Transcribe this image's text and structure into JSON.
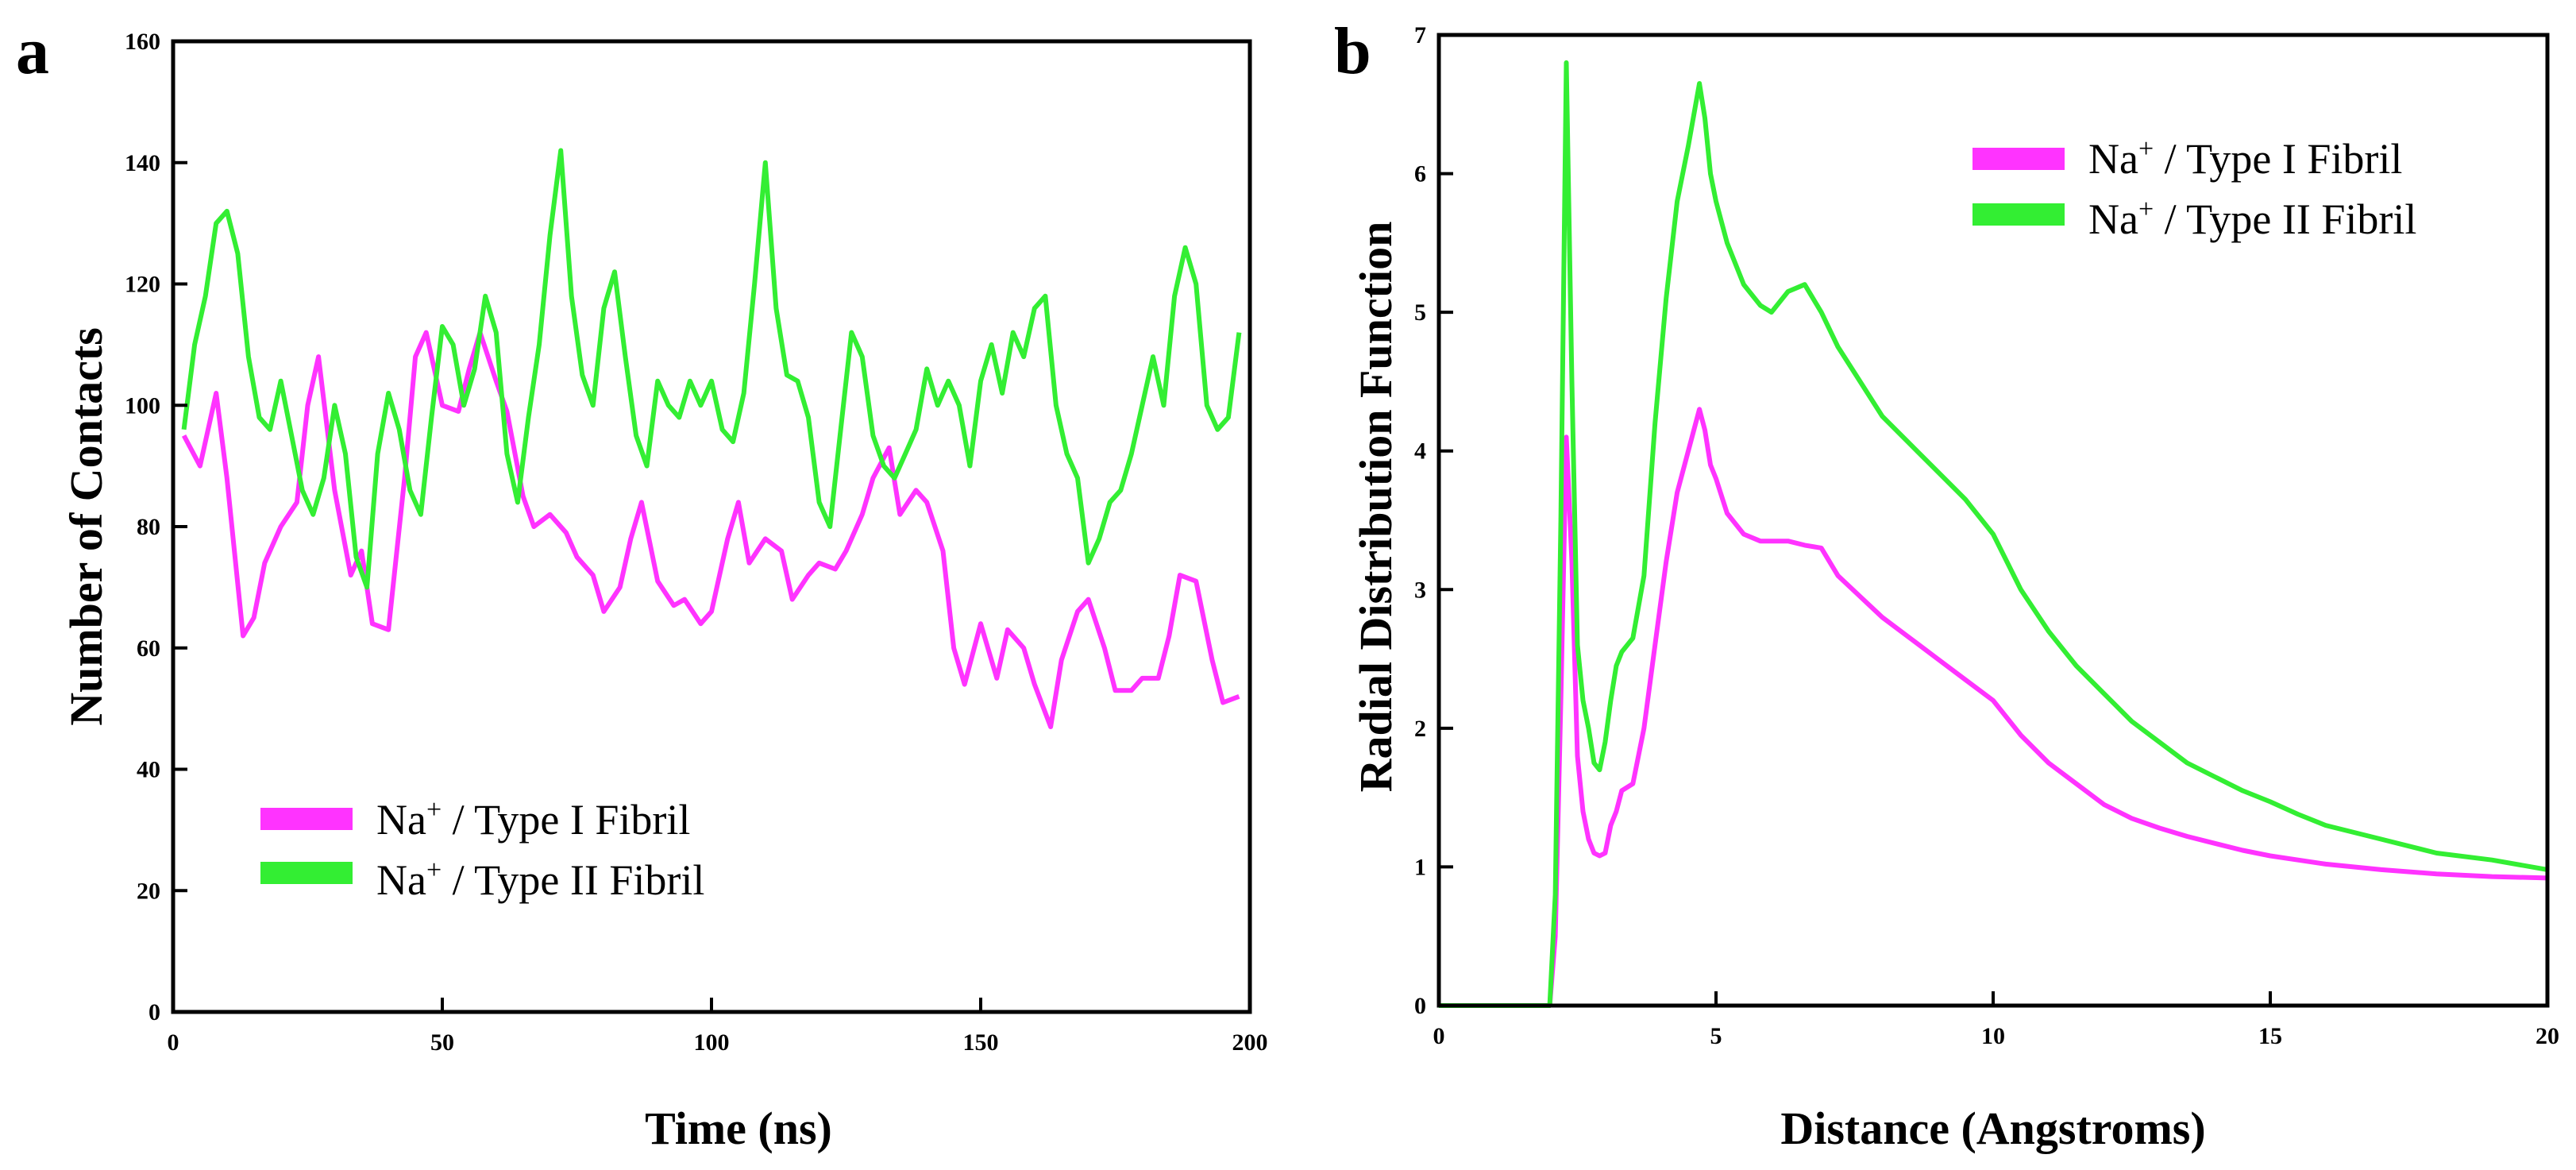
{
  "chart_data": [
    {
      "panel": "a",
      "type": "line",
      "title": "",
      "xlabel": "Time (ns)",
      "ylabel": "Number of Contacts",
      "xlim": [
        0,
        200
      ],
      "ylim": [
        0,
        160
      ],
      "xticks": [
        0,
        50,
        100,
        150,
        200
      ],
      "yticks": [
        0,
        20,
        40,
        60,
        80,
        100,
        120,
        140,
        160
      ],
      "grid": false,
      "legend_position": "bottom-left",
      "series": [
        {
          "name": "Na+ / Type I Fibril",
          "legend": {
            "base": "Na",
            "sup": "+",
            "rest": " / Type I Fibril"
          },
          "color": "#ff33ff",
          "x": [
            2,
            5,
            8,
            10,
            13,
            15,
            17,
            20,
            23,
            25,
            27,
            30,
            33,
            35,
            37,
            40,
            43,
            45,
            47,
            50,
            53,
            55,
            57,
            60,
            62,
            65,
            67,
            70,
            73,
            75,
            78,
            80,
            83,
            85,
            87,
            90,
            93,
            95,
            98,
            100,
            103,
            105,
            107,
            110,
            113,
            115,
            118,
            120,
            123,
            125,
            128,
            130,
            133,
            135,
            138,
            140,
            143,
            145,
            147,
            150,
            153,
            155,
            158,
            160,
            163,
            165,
            168,
            170,
            173,
            175,
            178,
            180,
            183,
            185,
            187,
            190,
            193,
            195,
            198
          ],
          "values": [
            95,
            90,
            102,
            88,
            62,
            65,
            74,
            80,
            84,
            100,
            108,
            86,
            72,
            76,
            64,
            63,
            88,
            108,
            112,
            100,
            99,
            106,
            112,
            104,
            99,
            85,
            80,
            82,
            79,
            75,
            72,
            66,
            70,
            78,
            84,
            71,
            67,
            68,
            64,
            66,
            78,
            84,
            74,
            78,
            76,
            68,
            72,
            74,
            73,
            76,
            82,
            88,
            93,
            82,
            86,
            84,
            76,
            60,
            54,
            64,
            55,
            63,
            60,
            54,
            47,
            58,
            66,
            68,
            60,
            53,
            53,
            55,
            55,
            62,
            72,
            71,
            58,
            51,
            52
          ]
        },
        {
          "name": "Na+ / Type II Fibril",
          "legend": {
            "base": "Na",
            "sup": "+",
            "rest": " / Type II Fibril"
          },
          "color": "#33ee33",
          "x": [
            2,
            4,
            6,
            8,
            10,
            12,
            14,
            16,
            18,
            20,
            22,
            24,
            26,
            28,
            30,
            32,
            34,
            36,
            38,
            40,
            42,
            44,
            46,
            48,
            50,
            52,
            54,
            56,
            58,
            60,
            62,
            64,
            66,
            68,
            70,
            72,
            74,
            76,
            78,
            80,
            82,
            84,
            86,
            88,
            90,
            92,
            94,
            96,
            98,
            100,
            102,
            104,
            106,
            108,
            110,
            112,
            114,
            116,
            118,
            120,
            122,
            124,
            126,
            128,
            130,
            132,
            134,
            136,
            138,
            140,
            142,
            144,
            146,
            148,
            150,
            152,
            154,
            156,
            158,
            160,
            162,
            164,
            166,
            168,
            170,
            172,
            174,
            176,
            178,
            180,
            182,
            184,
            186,
            188,
            190,
            192,
            194,
            196,
            198
          ],
          "values": [
            96,
            110,
            118,
            130,
            132,
            125,
            108,
            98,
            96,
            104,
            95,
            86,
            82,
            88,
            100,
            92,
            75,
            70,
            92,
            102,
            96,
            86,
            82,
            98,
            113,
            110,
            100,
            106,
            118,
            112,
            92,
            84,
            98,
            110,
            128,
            142,
            118,
            105,
            100,
            116,
            122,
            108,
            95,
            90,
            104,
            100,
            98,
            104,
            100,
            104,
            96,
            94,
            102,
            120,
            140,
            116,
            105,
            104,
            98,
            84,
            80,
            96,
            112,
            108,
            95,
            90,
            88,
            92,
            96,
            106,
            100,
            104,
            100,
            90,
            104,
            110,
            102,
            112,
            108,
            116,
            118,
            100,
            92,
            88,
            74,
            78,
            84,
            86,
            92,
            100,
            108,
            100,
            118,
            126,
            120,
            100,
            96,
            98,
            112
          ]
        }
      ]
    },
    {
      "panel": "b",
      "type": "line",
      "title": "",
      "xlabel": "Distance (Angstroms)",
      "ylabel": "Radial Distribution Function",
      "xlim": [
        0,
        20
      ],
      "ylim": [
        0,
        7
      ],
      "xticks": [
        0,
        5,
        10,
        15,
        20
      ],
      "yticks": [
        0,
        1,
        2,
        3,
        4,
        5,
        6,
        7
      ],
      "grid": false,
      "legend_position": "top-right",
      "series": [
        {
          "name": "Na+ / Type I Fibril",
          "legend": {
            "base": "Na",
            "sup": "+",
            "rest": " / Type I Fibril"
          },
          "color": "#ff33ff",
          "x": [
            0,
            1.5,
            2.0,
            2.1,
            2.2,
            2.3,
            2.4,
            2.5,
            2.6,
            2.7,
            2.8,
            2.9,
            3.0,
            3.1,
            3.2,
            3.3,
            3.5,
            3.7,
            3.9,
            4.1,
            4.3,
            4.5,
            4.7,
            4.8,
            4.9,
            5.0,
            5.2,
            5.5,
            5.8,
            6.0,
            6.3,
            6.6,
            6.9,
            7.2,
            7.6,
            8.0,
            8.5,
            9.0,
            9.5,
            10.0,
            10.5,
            11.0,
            11.5,
            12.0,
            12.5,
            13.0,
            13.5,
            14.0,
            14.5,
            15.0,
            15.5,
            16.0,
            17.0,
            18.0,
            19.0,
            20.0
          ],
          "values": [
            0,
            0,
            0,
            0.5,
            2.2,
            4.1,
            3.2,
            1.8,
            1.4,
            1.2,
            1.1,
            1.08,
            1.1,
            1.3,
            1.4,
            1.55,
            1.6,
            2.0,
            2.6,
            3.2,
            3.7,
            4.0,
            4.3,
            4.15,
            3.9,
            3.8,
            3.55,
            3.4,
            3.35,
            3.35,
            3.35,
            3.32,
            3.3,
            3.1,
            2.95,
            2.8,
            2.65,
            2.5,
            2.35,
            2.2,
            1.95,
            1.75,
            1.6,
            1.45,
            1.35,
            1.28,
            1.22,
            1.17,
            1.12,
            1.08,
            1.05,
            1.02,
            0.98,
            0.95,
            0.93,
            0.92
          ]
        },
        {
          "name": "Na+ / Type II Fibril",
          "legend": {
            "base": "Na",
            "sup": "+",
            "rest": " / Type II Fibril"
          },
          "color": "#33ee33",
          "x": [
            0,
            1.5,
            2.0,
            2.1,
            2.2,
            2.3,
            2.4,
            2.5,
            2.6,
            2.7,
            2.8,
            2.9,
            3.0,
            3.1,
            3.2,
            3.3,
            3.5,
            3.7,
            3.9,
            4.1,
            4.3,
            4.5,
            4.7,
            4.8,
            4.9,
            5.0,
            5.2,
            5.5,
            5.8,
            6.0,
            6.3,
            6.6,
            6.9,
            7.2,
            7.6,
            8.0,
            8.5,
            9.0,
            9.5,
            10.0,
            10.5,
            11.0,
            11.5,
            12.0,
            12.5,
            13.0,
            13.5,
            14.0,
            14.5,
            15.0,
            15.5,
            16.0,
            17.0,
            18.0,
            19.0,
            20.0
          ],
          "values": [
            0,
            0,
            0,
            0.8,
            3.5,
            6.8,
            4.5,
            2.6,
            2.2,
            2.0,
            1.75,
            1.7,
            1.9,
            2.2,
            2.45,
            2.55,
            2.65,
            3.1,
            4.2,
            5.1,
            5.8,
            6.2,
            6.65,
            6.4,
            6.0,
            5.8,
            5.5,
            5.2,
            5.05,
            5.0,
            5.15,
            5.2,
            5.0,
            4.75,
            4.5,
            4.25,
            4.05,
            3.85,
            3.65,
            3.4,
            3.0,
            2.7,
            2.45,
            2.25,
            2.05,
            1.9,
            1.75,
            1.65,
            1.55,
            1.47,
            1.38,
            1.3,
            1.2,
            1.1,
            1.05,
            0.98
          ]
        }
      ]
    }
  ]
}
